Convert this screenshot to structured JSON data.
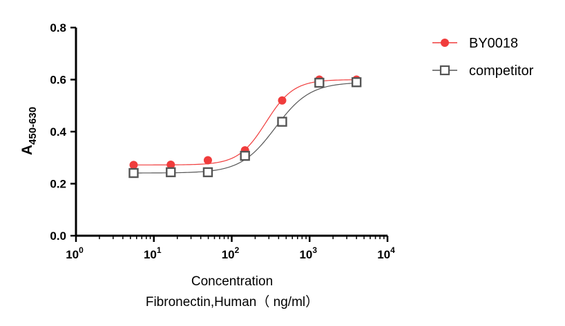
{
  "chart_data": {
    "type": "scatter",
    "x_scale": "log",
    "xlim": [
      1,
      10000
    ],
    "ylim": [
      0,
      0.8
    ],
    "x_ticks": [
      {
        "value": 1,
        "base": "10",
        "exp": "0"
      },
      {
        "value": 10,
        "base": "10",
        "exp": "1"
      },
      {
        "value": 100,
        "base": "10",
        "exp": "2"
      },
      {
        "value": 1000,
        "base": "10",
        "exp": "3"
      },
      {
        "value": 10000,
        "base": "10",
        "exp": "4"
      }
    ],
    "y_ticks": [
      "0.0",
      "0.2",
      "0.4",
      "0.6",
      "0.8"
    ],
    "xlabel_line1": "Concentration",
    "xlabel_line2": "Fibronectin,Human（ ng/ml）",
    "ylabel_main": "A",
    "ylabel_sub": "450-630",
    "grid": false,
    "legend_position": "top-right",
    "series": [
      {
        "name": "BY0018",
        "color": "#f03c3c",
        "marker": "filled-circle",
        "x": [
          5.5,
          16.5,
          49.4,
          148,
          444,
          1333,
          4000
        ],
        "y": [
          0.272,
          0.273,
          0.29,
          0.328,
          0.52,
          0.6,
          0.6
        ]
      },
      {
        "name": "competitor",
        "color": "#555555",
        "marker": "open-square",
        "x": [
          5.5,
          16.5,
          49.4,
          148,
          444,
          1333,
          4000
        ],
        "y": [
          0.241,
          0.244,
          0.244,
          0.307,
          0.438,
          0.588,
          0.59
        ]
      }
    ]
  }
}
